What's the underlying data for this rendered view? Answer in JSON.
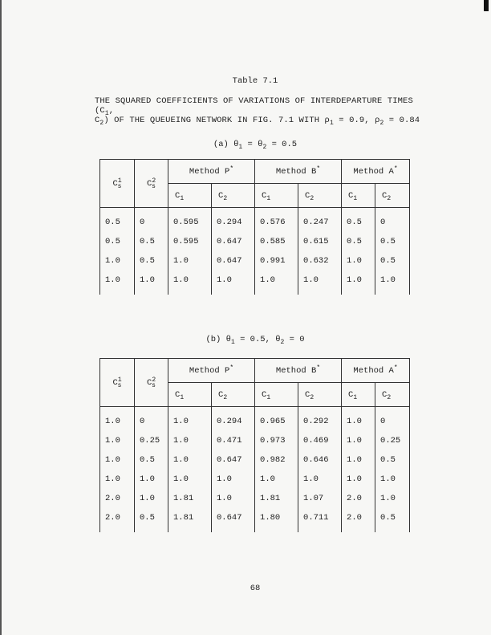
{
  "document": {
    "table_number": "Table 7.1",
    "caption_line1": "THE SQUARED COEFFICIENTS OF VARIATIONS OF INTERDEPARTURE TIMES (C",
    "caption_line1_sub": "1",
    "caption_line1_end": ",",
    "caption_line2_start": "C",
    "caption_line2_sub": "2",
    "caption_line2_text": ") OF THE QUEUEING NETWORK IN FIG. 7.1 WITH  ρ",
    "rho1_sub": "1",
    "rho1_val": " = 0.9,  ρ",
    "rho2_sub": "2",
    "rho2_val": " = 0.84",
    "page_number": "68"
  },
  "headers": {
    "cs": "C",
    "cs_sub": "s",
    "cs1_sup": "1",
    "cs2_sup": "2",
    "method_p": "Method P",
    "method_b": "Method B",
    "method_a": "Method A",
    "star": "*",
    "c": "C",
    "sub1": "1",
    "sub2": "2"
  },
  "table_a": {
    "label": "(a)  θ",
    "s1": "1",
    "mid": " = θ",
    "s2": "2",
    "end": " = 0.5",
    "rows": [
      [
        "0.5",
        "0",
        "0.595",
        "0.294",
        "0.576",
        "0.247",
        "0.5",
        "0"
      ],
      [
        "0.5",
        "0.5",
        "0.595",
        "0.647",
        "0.585",
        "0.615",
        "0.5",
        "0.5"
      ],
      [
        "1.0",
        "0.5",
        "1.0",
        "0.647",
        "0.991",
        "0.632",
        "1.0",
        "0.5"
      ],
      [
        "1.0",
        "1.0",
        "1.0",
        "1.0",
        "1.0",
        "1.0",
        "1.0",
        "1.0"
      ]
    ]
  },
  "table_b": {
    "label": "(b)  θ",
    "s1": "1",
    "mid": " = 0.5,  θ",
    "s2": "2",
    "end": " = 0",
    "rows": [
      [
        "1.0",
        "0",
        "1.0",
        "0.294",
        "0.965",
        "0.292",
        "1.0",
        "0"
      ],
      [
        "1.0",
        "0.25",
        "1.0",
        "0.471",
        "0.973",
        "0.469",
        "1.0",
        "0.25"
      ],
      [
        "1.0",
        "0.5",
        "1.0",
        "0.647",
        "0.982",
        "0.646",
        "1.0",
        "0.5"
      ],
      [
        "1.0",
        "1.0",
        "1.0",
        "1.0",
        "1.0",
        "1.0",
        "1.0",
        "1.0"
      ],
      [
        "2.0",
        "1.0",
        "1.81",
        "1.0",
        "1.81",
        "1.07",
        "2.0",
        "1.0"
      ],
      [
        "2.0",
        "0.5",
        "1.81",
        "0.647",
        "1.80",
        "0.711",
        "2.0",
        "0.5"
      ]
    ]
  }
}
